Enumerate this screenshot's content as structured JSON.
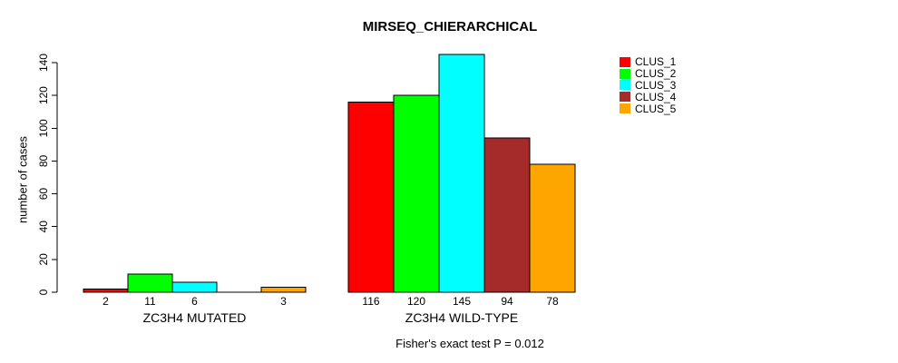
{
  "figure": {
    "title": "MIRSEQ_CHIERARCHICAL",
    "footer": "Fisher's exact test P = 0.012"
  },
  "chart_data": {
    "type": "bar",
    "title": "MIRSEQ_CHIERARCHICAL",
    "xlabel": "",
    "ylabel": "number of cases",
    "ylim": [
      0,
      145
    ],
    "yticks": [
      0,
      20,
      40,
      60,
      80,
      100,
      120,
      140
    ],
    "grid": false,
    "legend_position": "right",
    "categories": [
      "ZC3H4 MUTATED",
      "ZC3H4 WILD-TYPE"
    ],
    "series": [
      {
        "name": "CLUS_1",
        "color": "#ff0000",
        "values": [
          2,
          116
        ]
      },
      {
        "name": "CLUS_2",
        "color": "#00ff00",
        "values": [
          11,
          120
        ]
      },
      {
        "name": "CLUS_3",
        "color": "#00ffff",
        "values": [
          6,
          145
        ]
      },
      {
        "name": "CLUS_4",
        "color": "#a52a2a",
        "values": [
          0,
          94
        ]
      },
      {
        "name": "CLUS_5",
        "color": "#ffa500",
        "values": [
          3,
          78
        ]
      }
    ],
    "bar_value_labels": [
      [
        "2",
        "11",
        "6",
        "",
        "3"
      ],
      [
        "116",
        "120",
        "145",
        "94",
        "78"
      ]
    ],
    "annotation": "Fisher's exact test P = 0.012"
  }
}
